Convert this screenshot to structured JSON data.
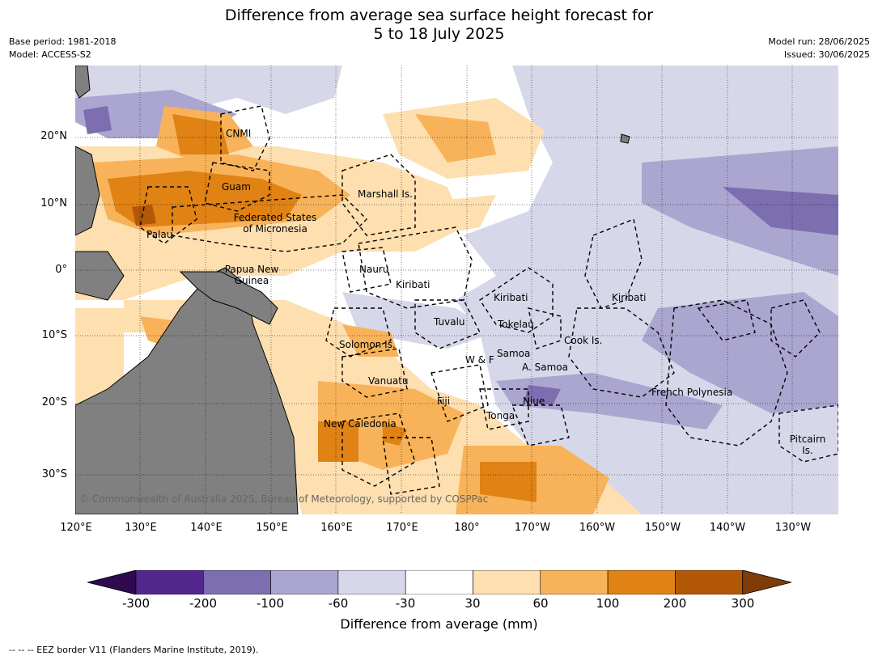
{
  "header": {
    "title_line1": "Difference from average sea surface height forecast for",
    "title_line2": "5 to 18 July 2025",
    "base_period": "Base period: 1981-2018",
    "model": "Model: ACCESS-S2",
    "model_run": "Model run: 28/06/2025",
    "issued": "Issued: 30/06/2025"
  },
  "map": {
    "latitude_labels": [
      "20°N",
      "10°N",
      "0°",
      "10°S",
      "20°S",
      "30°S"
    ],
    "longitude_labels": [
      "120°E",
      "130°E",
      "140°E",
      "150°E",
      "160°E",
      "170°E",
      "180°",
      "170°W",
      "160°W",
      "150°W",
      "140°W",
      "130°W"
    ],
    "places": {
      "cnmi": "CNMI",
      "guam": "Guam",
      "marshall": "Marshall Is.",
      "fsm_1": "Federated States",
      "fsm_2": "of Micronesia",
      "palau": "Palau",
      "png_1": "Papua New",
      "png_2": "Guinea",
      "nauru": "Nauru",
      "kiribati_w": "Kiribati",
      "kiribati_c": "Kiribati",
      "kiribati_e": "Kiribati",
      "tuvalu": "Tuvalu",
      "tokelau": "Tokelau",
      "solomon": "Solomon Is.",
      "wf": "W & F",
      "samoa": "Samoa",
      "am_samoa": "A. Samoa",
      "cook": "Cook Is.",
      "vanuatu": "Vanuatu",
      "fiji": "Fiji",
      "niue": "Niue",
      "tonga": "Tonga",
      "french_polynesia": "French Polynesia",
      "new_caledonia": "New Caledonia",
      "pitcairn_1": "Pitcairn",
      "pitcairn_2": "Is."
    },
    "copyright": "© Commonwealth of Australia 2025, Bureau of Meteorology, supported by COSPPac",
    "land_color": "#808080"
  },
  "colorbar": {
    "ticks": [
      "-300",
      "-200",
      "-100",
      "-60",
      "-30",
      "30",
      "60",
      "100",
      "200",
      "300"
    ],
    "colors": [
      "#2d0b4e",
      "#54278f",
      "#7d6eb0",
      "#aba6d0",
      "#d7d7ea",
      "#ffffff",
      "#fddfb0",
      "#f8b35a",
      "#e08214",
      "#b35806",
      "#7f3b08"
    ],
    "label": "Difference from average (mm)"
  },
  "footnote": "-- -- -- EEZ border V11 (Flanders Marine Institute, 2019)."
}
